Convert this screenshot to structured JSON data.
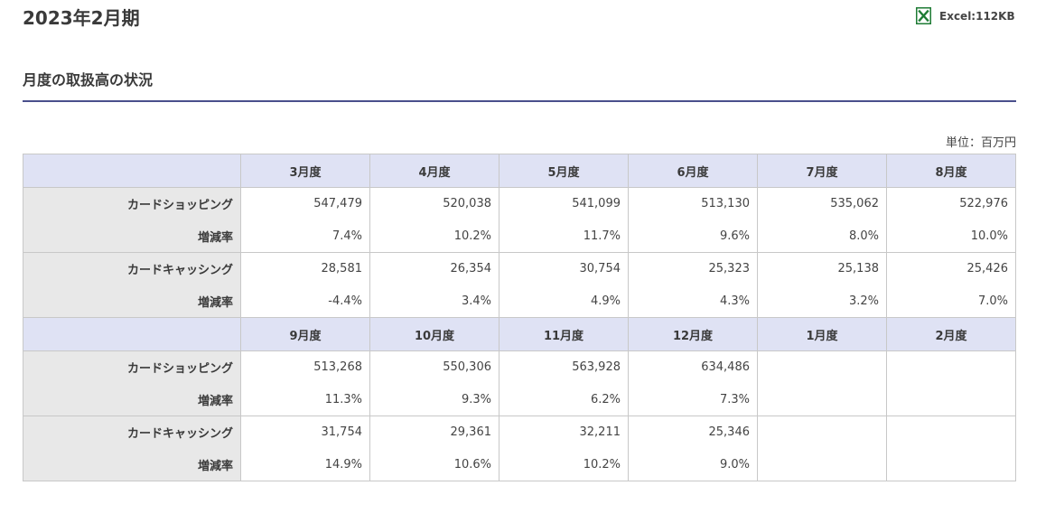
{
  "header": {
    "period_title": "2023年2月期",
    "excel_label": "Excel:112KB"
  },
  "section": {
    "heading": "月度の取扱高の状況",
    "unit": "単位：百万円"
  },
  "table": {
    "blocks": [
      {
        "months": [
          "3月度",
          "4月度",
          "5月度",
          "6月度",
          "7月度",
          "8月度"
        ],
        "rows": [
          {
            "label": "カードショッピング",
            "values": [
              "547,479",
              "520,038",
              "541,099",
              "513,130",
              "535,062",
              "522,976"
            ]
          },
          {
            "label": "増減率",
            "values": [
              "7.4%",
              "10.2%",
              "11.7%",
              "9.6%",
              "8.0%",
              "10.0%"
            ]
          },
          {
            "label": "カードキャッシング",
            "values": [
              "28,581",
              "26,354",
              "30,754",
              "25,323",
              "25,138",
              "25,426"
            ]
          },
          {
            "label": "増減率",
            "values": [
              "-4.4%",
              "3.4%",
              "4.9%",
              "4.3%",
              "3.2%",
              "7.0%"
            ]
          }
        ]
      },
      {
        "months": [
          "9月度",
          "10月度",
          "11月度",
          "12月度",
          "1月度",
          "2月度"
        ],
        "rows": [
          {
            "label": "カードショッピング",
            "values": [
              "513,268",
              "550,306",
              "563,928",
              "634,486",
              "",
              ""
            ]
          },
          {
            "label": "増減率",
            "values": [
              "11.3%",
              "9.3%",
              "6.2%",
              "7.3%",
              "",
              ""
            ]
          },
          {
            "label": "カードキャッシング",
            "values": [
              "31,754",
              "29,361",
              "32,211",
              "25,346",
              "",
              ""
            ]
          },
          {
            "label": "増減率",
            "values": [
              "14.9%",
              "10.6%",
              "10.2%",
              "9.0%",
              "",
              ""
            ]
          }
        ]
      }
    ]
  }
}
